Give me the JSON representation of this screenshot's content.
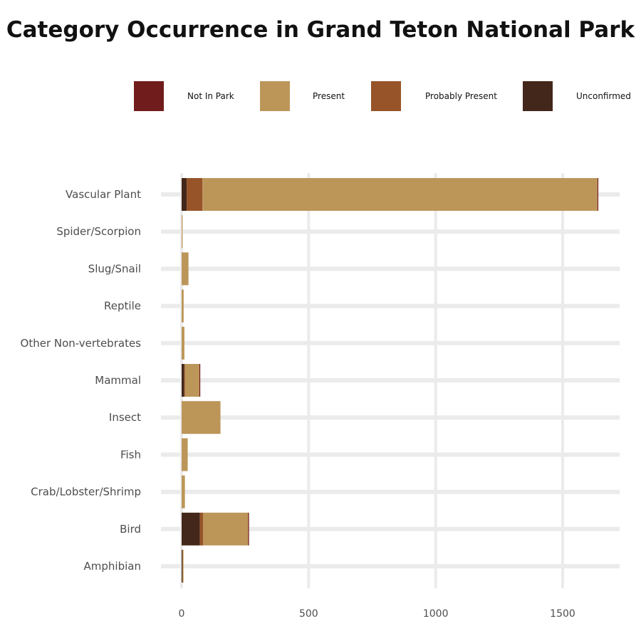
{
  "chart_data": {
    "type": "bar",
    "orientation": "horizontal",
    "stacked": true,
    "title": "Category Occurrence in Grand Teton National Park",
    "xlabel": "",
    "ylabel": "",
    "xlim": [
      0,
      1720
    ],
    "x_ticks": [
      0,
      500,
      1000,
      1500
    ],
    "x_tick_labels": [
      "0",
      "500",
      "1000",
      "1500"
    ],
    "grid": true,
    "legend_position": "top",
    "categories": [
      "Vascular Plant",
      "Spider/Scorpion",
      "Slug/Snail",
      "Reptile",
      "Other Non-vertebrates",
      "Mammal",
      "Insect",
      "Fish",
      "Crab/Lobster/Shrimp",
      "Bird",
      "Amphibian"
    ],
    "series": [
      {
        "name": "Unconfirmed",
        "color": "#43271A",
        "values": [
          20,
          0,
          0,
          0,
          0,
          10,
          0,
          0,
          0,
          72,
          3
        ]
      },
      {
        "name": "Probably Present",
        "color": "#975428",
        "values": [
          62,
          0,
          0,
          0,
          0,
          3,
          0,
          0,
          0,
          13,
          1
        ]
      },
      {
        "name": "Present",
        "color": "#BC9659",
        "values": [
          1555,
          3,
          27,
          8,
          11,
          57,
          153,
          24,
          13,
          177,
          1
        ]
      },
      {
        "name": "Not In Park",
        "color": "#711C1C",
        "values": [
          2,
          0,
          0,
          0,
          0,
          1,
          0,
          0,
          0,
          1,
          0
        ]
      }
    ]
  },
  "legend": {
    "items": [
      {
        "label": "Not In Park",
        "color": "#711C1C"
      },
      {
        "label": "Present",
        "color": "#BC9659"
      },
      {
        "label": "Probably Present",
        "color": "#975428"
      },
      {
        "label": "Unconfirmed",
        "color": "#43271A"
      }
    ]
  }
}
